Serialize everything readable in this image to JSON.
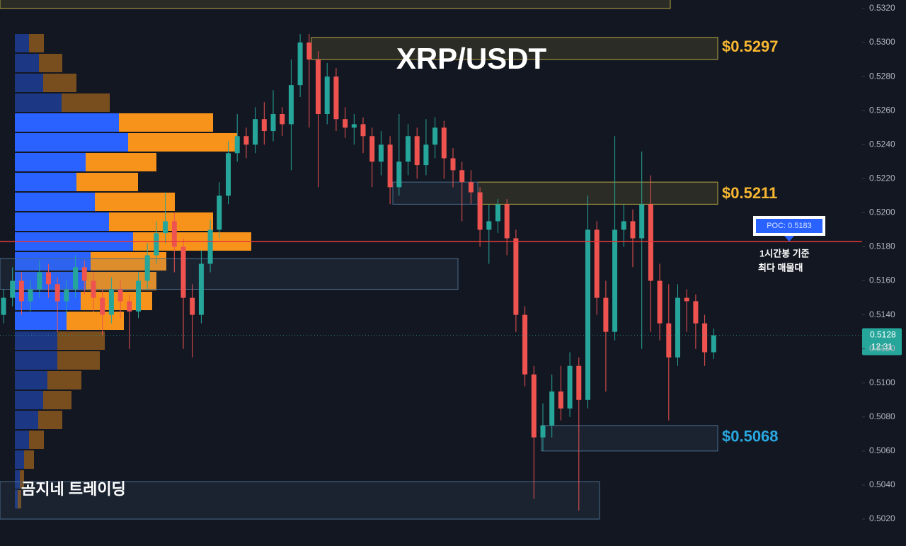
{
  "chart_data": {
    "type": "candlestick",
    "title": "XRP/USDT",
    "watermark": "곰지네 트레이딩",
    "ylim": [
      0.502,
      0.532
    ],
    "yticks": [
      {
        "value": 0.502,
        "label": "0.5020"
      },
      {
        "value": 0.504,
        "label": "0.5040"
      },
      {
        "value": 0.506,
        "label": "0.5060"
      },
      {
        "value": 0.508,
        "label": "0.5080"
      },
      {
        "value": 0.51,
        "label": "0.5100"
      },
      {
        "value": 0.512,
        "label": "0.5120"
      },
      {
        "value": 0.514,
        "label": "0.5140"
      },
      {
        "value": 0.516,
        "label": "0.5160"
      },
      {
        "value": 0.518,
        "label": "0.5180"
      },
      {
        "value": 0.52,
        "label": "0.5200"
      },
      {
        "value": 0.522,
        "label": "0.5220"
      },
      {
        "value": 0.524,
        "label": "0.5240"
      },
      {
        "value": 0.526,
        "label": "0.5260"
      },
      {
        "value": 0.528,
        "label": "0.5280"
      },
      {
        "value": 0.53,
        "label": "0.5300"
      },
      {
        "value": 0.532,
        "label": "0.5320"
      }
    ],
    "up_color": "#26a69a",
    "down_color": "#ef5350",
    "open": [
      0.514,
      0.515,
      0.516,
      0.5148,
      0.5155,
      0.5165,
      0.5158,
      0.5148,
      0.5155,
      0.5168,
      0.516,
      0.515,
      0.514,
      0.5155,
      0.5148,
      0.5142,
      0.516,
      0.5175,
      0.5188,
      0.5195,
      0.518,
      0.515,
      0.514,
      0.517,
      0.519,
      0.521,
      0.5235,
      0.5245,
      0.524,
      0.5255,
      0.5248,
      0.5258,
      0.5252,
      0.5275,
      0.53,
      0.529,
      0.5258,
      0.528,
      0.5255,
      0.525,
      0.5252,
      0.5245,
      0.523,
      0.524,
      0.5215,
      0.523,
      0.5245,
      0.5228,
      0.524,
      0.525,
      0.5232,
      0.5225,
      0.5218,
      0.5212,
      0.519,
      0.5195,
      0.5205,
      0.5185,
      0.514,
      0.5105,
      0.5068,
      0.5075,
      0.5095,
      0.5085,
      0.511,
      0.509,
      0.519,
      0.515,
      0.513,
      0.519,
      0.5195,
      0.5185,
      0.5205,
      0.516,
      0.5135,
      0.5115,
      0.515,
      0.5148,
      0.5135,
      0.5118
    ],
    "high": [
      0.5155,
      0.5168,
      0.5165,
      0.516,
      0.5172,
      0.517,
      0.5162,
      0.516,
      0.5175,
      0.5172,
      0.5165,
      0.5155,
      0.5162,
      0.516,
      0.5152,
      0.5165,
      0.5182,
      0.5195,
      0.5212,
      0.52,
      0.5185,
      0.5158,
      0.5178,
      0.5196,
      0.5218,
      0.5242,
      0.5258,
      0.525,
      0.5262,
      0.5265,
      0.5272,
      0.5262,
      0.529,
      0.5305,
      0.5305,
      0.5295,
      0.5288,
      0.5285,
      0.5262,
      0.5258,
      0.5256,
      0.525,
      0.5248,
      0.5245,
      0.5258,
      0.5252,
      0.525,
      0.5255,
      0.5256,
      0.5254,
      0.5238,
      0.523,
      0.5225,
      0.5215,
      0.5205,
      0.5208,
      0.5208,
      0.519,
      0.5145,
      0.511,
      0.5088,
      0.5105,
      0.511,
      0.5118,
      0.5115,
      0.521,
      0.5195,
      0.516,
      0.5245,
      0.5205,
      0.5202,
      0.5236,
      0.5222,
      0.517,
      0.5158,
      0.5158,
      0.5155,
      0.5152,
      0.514,
      0.5132
    ],
    "low": [
      0.5135,
      0.5145,
      0.514,
      0.5142,
      0.515,
      0.515,
      0.513,
      0.514,
      0.515,
      0.5152,
      0.5142,
      0.5128,
      0.5135,
      0.5138,
      0.512,
      0.5138,
      0.5155,
      0.517,
      0.5182,
      0.5165,
      0.512,
      0.5115,
      0.5135,
      0.5165,
      0.5185,
      0.5205,
      0.523,
      0.5232,
      0.5235,
      0.524,
      0.5242,
      0.5245,
      0.5225,
      0.5268,
      0.525,
      0.5215,
      0.5252,
      0.5248,
      0.5244,
      0.524,
      0.5235,
      0.5215,
      0.5222,
      0.5205,
      0.521,
      0.5222,
      0.522,
      0.5222,
      0.5232,
      0.522,
      0.5215,
      0.5195,
      0.5205,
      0.518,
      0.517,
      0.5188,
      0.5175,
      0.513,
      0.5098,
      0.5032,
      0.506,
      0.5068,
      0.5078,
      0.508,
      0.5025,
      0.5085,
      0.514,
      0.5095,
      0.5125,
      0.518,
      0.5168,
      0.512,
      0.513,
      0.5125,
      0.5078,
      0.511,
      0.513,
      0.512,
      0.511,
      0.5114
    ],
    "close": [
      0.515,
      0.516,
      0.5148,
      0.5155,
      0.5165,
      0.5158,
      0.5148,
      0.5155,
      0.5168,
      0.516,
      0.515,
      0.514,
      0.5155,
      0.5148,
      0.5142,
      0.516,
      0.5175,
      0.5188,
      0.5195,
      0.518,
      0.515,
      0.514,
      0.517,
      0.519,
      0.521,
      0.5235,
      0.5245,
      0.524,
      0.5255,
      0.5248,
      0.5258,
      0.5252,
      0.5275,
      0.53,
      0.529,
      0.5258,
      0.528,
      0.5255,
      0.525,
      0.5252,
      0.5245,
      0.523,
      0.524,
      0.5215,
      0.523,
      0.5245,
      0.5228,
      0.524,
      0.525,
      0.5232,
      0.5225,
      0.5218,
      0.5212,
      0.519,
      0.5195,
      0.5205,
      0.5185,
      0.514,
      0.5105,
      0.5068,
      0.5075,
      0.5095,
      0.5085,
      0.511,
      0.509,
      0.519,
      0.515,
      0.513,
      0.519,
      0.5195,
      0.5185,
      0.5205,
      0.516,
      0.5135,
      0.5115,
      0.515,
      0.5148,
      0.5135,
      0.5118,
      0.5128
    ],
    "volume_profile": {
      "buy_color": "#2962ff",
      "sell_color": "#f7931a",
      "value_area": [
        4,
        14
      ],
      "buy": [
        20,
        34,
        40,
        66,
        147,
        160,
        100,
        87,
        113,
        133,
        167,
        107,
        100,
        93,
        73,
        60,
        60,
        46,
        40,
        33,
        20,
        13,
        7,
        4
      ],
      "sell": [
        21,
        33,
        47,
        68,
        133,
        154,
        100,
        87,
        113,
        147,
        167,
        107,
        100,
        101,
        81,
        67,
        60,
        48,
        40,
        34,
        21,
        14,
        6,
        5
      ]
    },
    "zones": [
      {
        "low": 0.532,
        "high": 0.5328,
        "color": "#b5a642"
      },
      {
        "low": 0.529,
        "high": 0.5303,
        "color": "#b5a642"
      },
      {
        "low": 0.5205,
        "high": 0.5218,
        "color": "#b5a642"
      },
      {
        "low": 0.5205,
        "high": 0.5218,
        "color": "#4a6b8a"
      },
      {
        "low": 0.5155,
        "high": 0.5173,
        "color": "#4a6b8a"
      },
      {
        "low": 0.506,
        "high": 0.5075,
        "color": "#4a6b8a"
      },
      {
        "low": 0.502,
        "high": 0.5042,
        "color": "#4a6b8a"
      }
    ],
    "price_labels": [
      {
        "value": 0.5297,
        "label": "$0.5297",
        "color": "#f7b731"
      },
      {
        "value": 0.5211,
        "label": "$0.5211",
        "color": "#f7b731"
      },
      {
        "value": 0.5068,
        "label": "$0.5068",
        "color": "#29a8e0"
      }
    ],
    "poc": {
      "value": 0.5183,
      "label": "POC: 0.5183",
      "color": "#e53935",
      "note": [
        "1시간봉 기준",
        "최다 매물대"
      ]
    },
    "last_price": {
      "value": 0.5128,
      "label": "0.5128",
      "countdown": "12:31",
      "color": "#26a69a"
    }
  }
}
